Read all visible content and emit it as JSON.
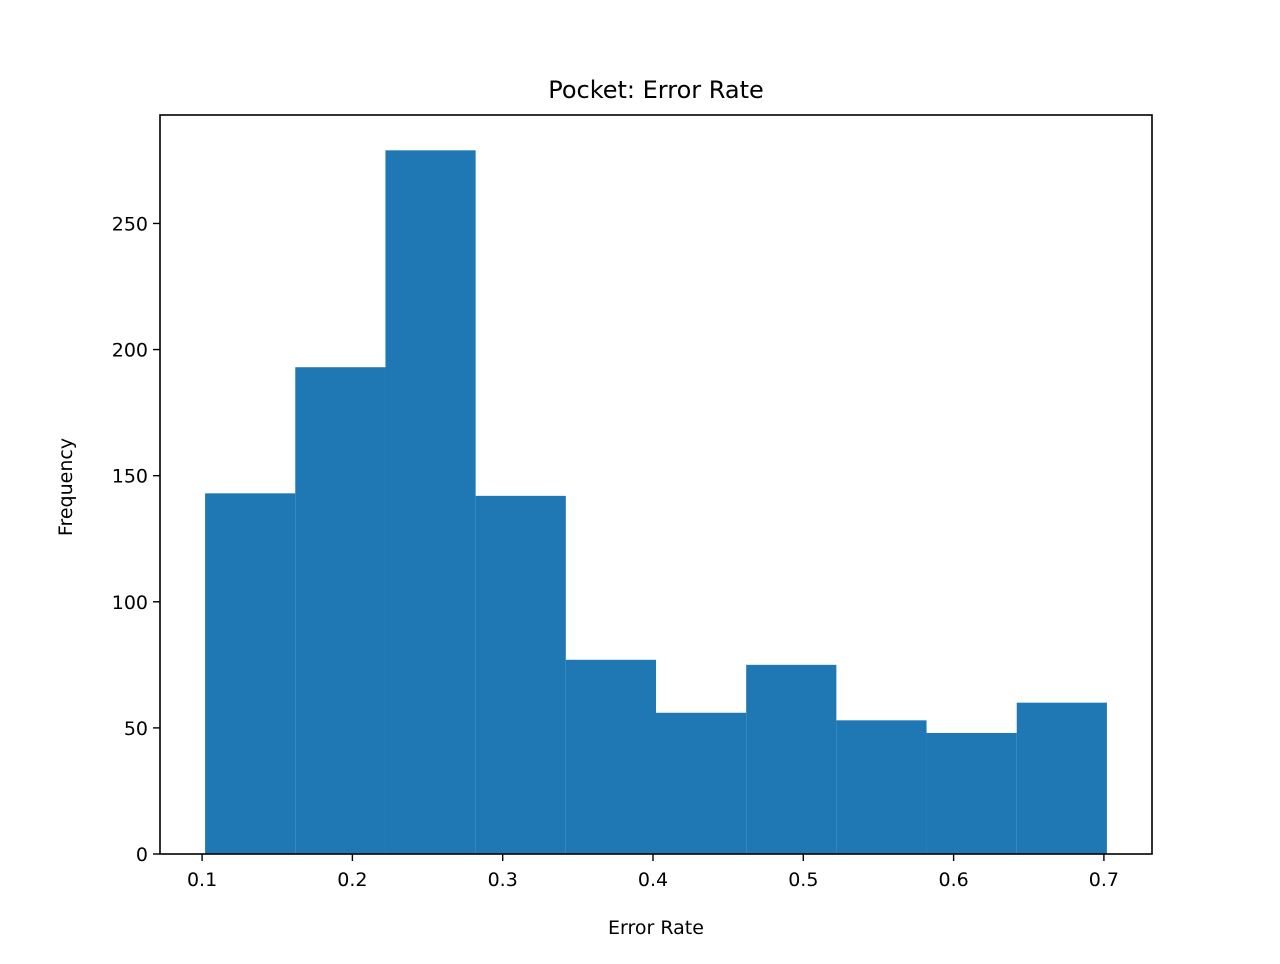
{
  "chart_data": {
    "type": "bar",
    "subtype": "histogram",
    "title": "Pocket: Error Rate",
    "xlabel": "Error Rate",
    "ylabel": "Frequency",
    "bin_edges": [
      0.102,
      0.162,
      0.222,
      0.282,
      0.342,
      0.402,
      0.462,
      0.522,
      0.582,
      0.642,
      0.702
    ],
    "values": [
      143,
      193,
      279,
      142,
      77,
      56,
      75,
      53,
      48,
      60
    ],
    "xlim": [
      0.072,
      0.732
    ],
    "ylim": [
      0,
      293
    ],
    "xticks": [
      0.1,
      0.2,
      0.3,
      0.4,
      0.5,
      0.6,
      0.7
    ],
    "xtick_labels": [
      "0.1",
      "0.2",
      "0.3",
      "0.4",
      "0.5",
      "0.6",
      "0.7"
    ],
    "yticks": [
      0,
      50,
      100,
      150,
      200,
      250
    ],
    "ytick_labels": [
      "0",
      "50",
      "100",
      "150",
      "200",
      "250"
    ],
    "bar_color": "#1f77b4",
    "grid": false,
    "legend": "none"
  }
}
